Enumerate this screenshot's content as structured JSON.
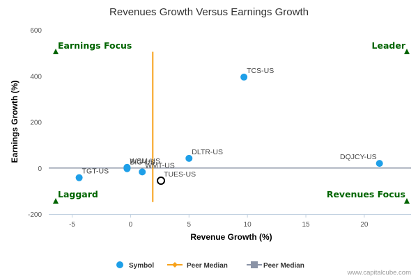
{
  "chart_data": {
    "type": "scatter",
    "title": "Revenues Growth Versus Earnings Growth",
    "xlabel": "Revenue Growth (%)",
    "ylabel": "Earnings Growth (%)",
    "xlim": [
      -7,
      24
    ],
    "ylim": [
      -200,
      600
    ],
    "x_ticks": [
      -5,
      0,
      5,
      10,
      15,
      20
    ],
    "y_ticks": [
      -200,
      0,
      200,
      400,
      600
    ],
    "quadrants": {
      "top_left": "Earnings Focus",
      "top_right": "Leader",
      "bottom_left": "Laggard",
      "bottom_right": "Revenues Focus"
    },
    "points": [
      {
        "label": "TCS-US",
        "x": 9.7,
        "y": 395
      },
      {
        "label": "DLTR-US",
        "x": 5.0,
        "y": 42
      },
      {
        "label": "DQJCY-US",
        "x": 21.3,
        "y": 20
      },
      {
        "label": "TGT-US",
        "x": -4.4,
        "y": -42
      },
      {
        "label": "WSM-US",
        "x": -0.3,
        "y": 3
      },
      {
        "label": "BIG-US",
        "x": -0.3,
        "y": -3
      },
      {
        "label": "WMT-US",
        "x": 1.0,
        "y": -17
      }
    ],
    "highlight_point": {
      "label": "TUES-US",
      "x": 2.6,
      "y": -55
    },
    "peer_median": {
      "x": 1.9,
      "y": 0,
      "y_range": [
        -148,
        505
      ],
      "x_range": [
        -7,
        24
      ]
    },
    "legend": [
      "Symbol",
      "Peer Median",
      "Peer Median"
    ],
    "colors": {
      "symbol": "#1e9fe8",
      "peer_median_v": "#f7a21b",
      "peer_median_h": "#8a93a6",
      "quadrant": "#006400"
    },
    "credit": "www.capitalcube.com"
  }
}
